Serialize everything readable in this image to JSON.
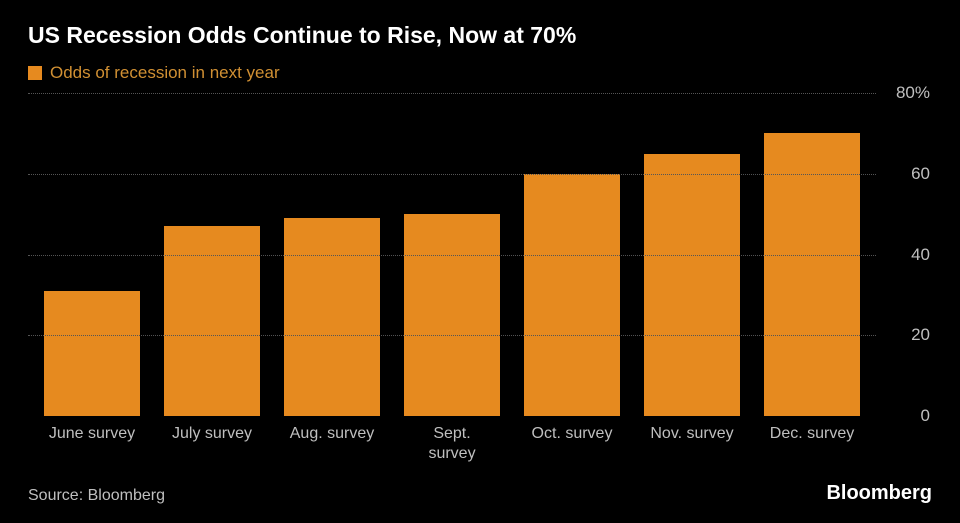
{
  "chart": {
    "type": "bar",
    "title": "US Recession Odds Continue to Rise, Now at 70%",
    "legend_label": "Odds of recession in next year",
    "categories": [
      "June survey",
      "July survey",
      "Aug. survey",
      "Sept. survey",
      "Oct. survey",
      "Nov. survey",
      "Dec. survey"
    ],
    "values": [
      31,
      47,
      49,
      50,
      60,
      65,
      70
    ],
    "bar_color": "#e68a1f",
    "background_color": "#000000",
    "grid_color": "#555555",
    "ylim": [
      0,
      80
    ],
    "ytick_step": 20,
    "y_unit": "%",
    "axis_text_color": "#bfbfbf",
    "title_color": "#ffffff",
    "title_fontsize": 23,
    "legend_text_color": "#d19033",
    "label_fontsize": 17,
    "bar_width_ratio": 0.88
  },
  "footer": {
    "source": "Source: Bloomberg",
    "brand": "Bloomberg"
  }
}
